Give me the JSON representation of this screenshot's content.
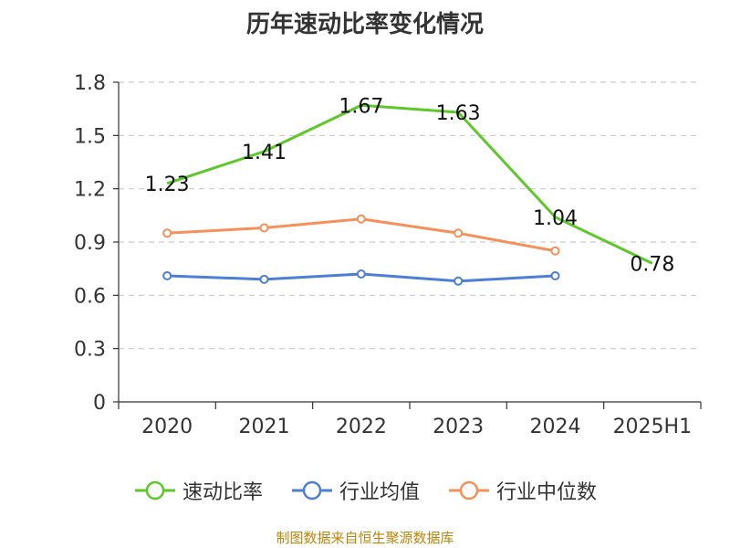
{
  "title": "历年速动比率变化情况",
  "footer": "制图数据来自恒生聚源数据库",
  "chart_data": {
    "type": "line",
    "categories": [
      "2020",
      "2021",
      "2022",
      "2023",
      "2024",
      "2025H1"
    ],
    "ylim": [
      0,
      1.8
    ],
    "yticks": [
      "0",
      "0.3",
      "0.6",
      "0.9",
      "1.2",
      "1.5",
      "1.8"
    ],
    "grid": "horizontal dashed",
    "legend_position": "bottom",
    "series": [
      {
        "name": "速动比率",
        "color": "#5cc82a",
        "values": [
          1.23,
          1.41,
          1.67,
          1.63,
          1.04,
          0.78
        ],
        "labels": [
          "1.23",
          "1.41",
          "1.67",
          "1.63",
          "1.04",
          "0.78"
        ],
        "markers": false
      },
      {
        "name": "行业均值",
        "color": "#4e7fd6",
        "values": [
          0.71,
          0.69,
          0.72,
          0.68,
          0.71,
          null
        ],
        "markers": true
      },
      {
        "name": "行业中位数",
        "color": "#f5905a",
        "values": [
          0.95,
          0.98,
          1.03,
          0.95,
          0.85,
          null
        ],
        "markers": true
      }
    ]
  }
}
